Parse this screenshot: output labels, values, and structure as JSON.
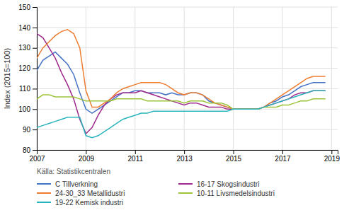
{
  "chart_data": {
    "type": "line",
    "ylabel": "Index (2015=100)",
    "source": "Källa: Statistikcentralen",
    "x": [
      2007.0,
      2007.25,
      2007.5,
      2007.75,
      2008.0,
      2008.25,
      2008.5,
      2008.75,
      2009.0,
      2009.25,
      2009.5,
      2009.75,
      2010.0,
      2010.25,
      2010.5,
      2010.75,
      2011.0,
      2011.25,
      2011.5,
      2011.75,
      2012.0,
      2012.25,
      2012.5,
      2012.75,
      2013.0,
      2013.25,
      2013.5,
      2013.75,
      2014.0,
      2014.25,
      2014.5,
      2014.75,
      2015.0,
      2015.25,
      2015.5,
      2015.75,
      2016.0,
      2016.25,
      2016.5,
      2016.75,
      2017.0,
      2017.25,
      2017.5,
      2017.75,
      2018.0,
      2018.25,
      2018.5,
      2018.75
    ],
    "series": [
      {
        "name": "C Tillverkning",
        "color": "#4472c4",
        "values": [
          119,
          124,
          126,
          128,
          125,
          122,
          117,
          108,
          100,
          98,
          100,
          102,
          104,
          106,
          108,
          108,
          109,
          109,
          108,
          108,
          108,
          107,
          108,
          107,
          107,
          108,
          108,
          107,
          104,
          103,
          102,
          101,
          100,
          100,
          100,
          100,
          100,
          101,
          103,
          104,
          106,
          107,
          109,
          111,
          112,
          113,
          113,
          113
        ]
      },
      {
        "name": "16-17 Skogsindustri",
        "color": "#9e2a8d",
        "values": [
          137,
          135,
          130,
          125,
          118,
          112,
          105,
          95,
          88,
          91,
          97,
          102,
          105,
          107,
          108,
          108,
          108,
          109,
          108,
          107,
          106,
          105,
          104,
          103,
          102,
          103,
          103,
          102,
          101,
          101,
          101,
          100,
          100,
          100,
          100,
          100,
          100,
          101,
          102,
          103,
          104,
          105,
          107,
          108,
          108,
          109,
          109,
          109
        ]
      },
      {
        "name": "24-30_33 Metallidustri",
        "color": "#ed7d31",
        "values": [
          125,
          130,
          133,
          136,
          138,
          139,
          137,
          130,
          109,
          101,
          101,
          103,
          105,
          108,
          110,
          111,
          112,
          113,
          113,
          113,
          113,
          112,
          110,
          108,
          107,
          108,
          108,
          107,
          105,
          103,
          102,
          101,
          100,
          100,
          100,
          100,
          100,
          101,
          103,
          105,
          107,
          109,
          111,
          113,
          115,
          116,
          116,
          116
        ]
      },
      {
        "name": "10-11 Livsmedelsindustri",
        "color": "#9dc33b",
        "values": [
          105,
          107,
          107,
          106,
          106,
          106,
          106,
          105,
          104,
          104,
          104,
          104,
          104,
          105,
          105,
          105,
          105,
          105,
          104,
          104,
          104,
          104,
          104,
          104,
          103,
          104,
          104,
          104,
          103,
          103,
          103,
          102,
          100,
          100,
          100,
          100,
          100,
          101,
          101,
          101,
          102,
          102,
          103,
          104,
          104,
          105,
          105,
          105
        ]
      },
      {
        "name": "19-22 Kemisk industri",
        "color": "#2ab5bd",
        "values": [
          91,
          92,
          93,
          94,
          95,
          96,
          96,
          96,
          87,
          86,
          87,
          89,
          91,
          93,
          95,
          96,
          97,
          98,
          98,
          99,
          99,
          99,
          99,
          99,
          99,
          99,
          99,
          99,
          99,
          99,
          99,
          99,
          100,
          100,
          100,
          100,
          100,
          101,
          102,
          103,
          104,
          105,
          106,
          107,
          108,
          109,
          109,
          109
        ]
      }
    ],
    "xlim": [
      2007.0,
      2019.25
    ],
    "xticks": [
      2007,
      2009,
      2011,
      2013,
      2015,
      2017,
      2019
    ],
    "ylim": [
      80,
      150
    ],
    "yticks": [
      80,
      90,
      100,
      110,
      120,
      130,
      140,
      150
    ],
    "grid": true,
    "legend": "bottom"
  }
}
